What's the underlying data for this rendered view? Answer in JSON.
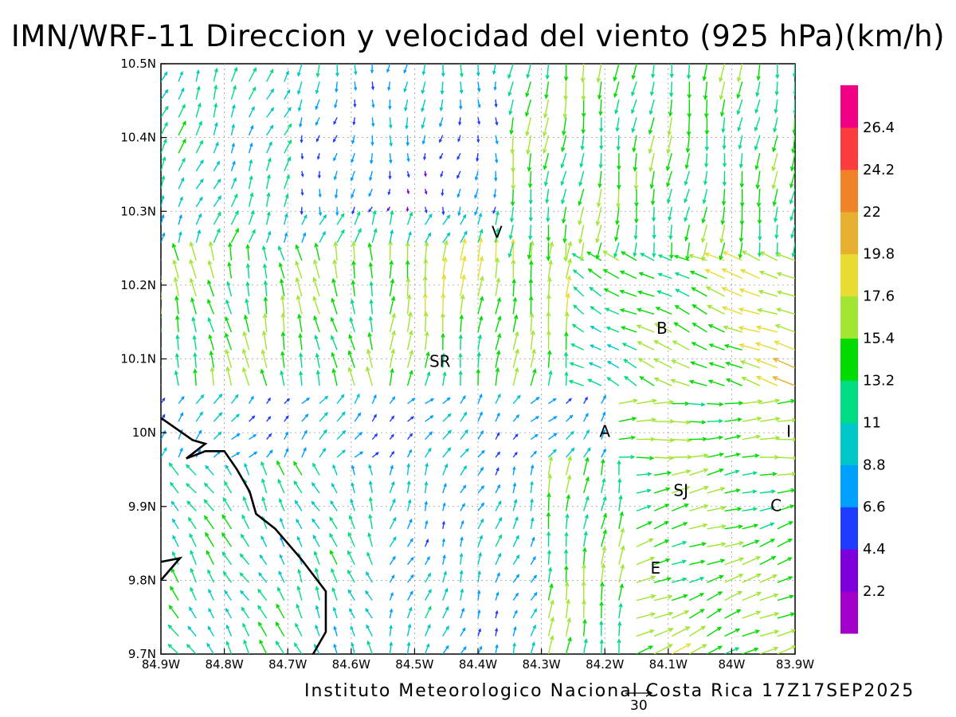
{
  "title": "IMN/WRF-11 Direccion y velocidad del viento (925 hPa)(km/h)",
  "credit": "Instituto Meteorologico Nacional Costa Rica 17Z17SEP2025",
  "reference_vector": {
    "value": "30"
  },
  "map": {
    "lon_range": [
      -84.9,
      -83.9
    ],
    "lat_range": [
      9.7,
      10.5
    ],
    "x_ticks": [
      "84.9W",
      "84.8W",
      "84.7W",
      "84.6W",
      "84.5W",
      "84.4W",
      "84.3W",
      "84.2W",
      "84.1W",
      "84W",
      "83.9W"
    ],
    "y_ticks": [
      "9.7N",
      "9.8N",
      "9.9N",
      "10N",
      "10.1N",
      "10.2N",
      "10.3N",
      "10.4N",
      "10.5N"
    ],
    "coastline": [
      {
        "name": "main-coast",
        "points": [
          [
            -84.9,
            10.02
          ],
          [
            -84.85,
            9.99
          ],
          [
            -84.83,
            9.985
          ],
          [
            -84.86,
            9.965
          ],
          [
            -84.83,
            9.975
          ],
          [
            -84.8,
            9.975
          ],
          [
            -84.78,
            9.95
          ],
          [
            -84.76,
            9.92
          ],
          [
            -84.75,
            9.89
          ],
          [
            -84.72,
            9.87
          ],
          [
            -84.68,
            9.83
          ],
          [
            -84.64,
            9.785
          ],
          [
            -84.64,
            9.73
          ],
          [
            -84.66,
            9.7
          ]
        ]
      },
      {
        "name": "peninsula-tip",
        "points": [
          [
            -84.9,
            9.825
          ],
          [
            -84.87,
            9.83
          ],
          [
            -84.9,
            9.8
          ]
        ]
      }
    ],
    "towns": [
      {
        "code": "V",
        "lon": -84.37,
        "lat": 10.27
      },
      {
        "code": "SR",
        "lon": -84.46,
        "lat": 10.095
      },
      {
        "code": "B",
        "lon": -84.11,
        "lat": 10.14
      },
      {
        "code": "A",
        "lon": -84.2,
        "lat": 10.0
      },
      {
        "code": "I",
        "lon": -83.91,
        "lat": 10.0
      },
      {
        "code": "SJ",
        "lon": -84.08,
        "lat": 9.92
      },
      {
        "code": "C",
        "lon": -83.93,
        "lat": 9.9
      },
      {
        "code": "E",
        "lon": -84.12,
        "lat": 9.815
      }
    ]
  },
  "colorbar": {
    "colors": [
      "#a000c8",
      "#7d00dc",
      "#1e3cff",
      "#00a0ff",
      "#00c8c8",
      "#00dc82",
      "#00dc00",
      "#a0e632",
      "#e6dc32",
      "#e6af2d",
      "#f08228",
      "#fa3c3c",
      "#f00082"
    ],
    "labels": [
      "2.2",
      "4.4",
      "6.6",
      "8.8",
      "11",
      "13.2",
      "15.4",
      "17.6",
      "19.8",
      "22",
      "24.2",
      "26.4"
    ]
  },
  "chart_data": {
    "type": "wind-vector-map",
    "title": "IMN/WRF-11 Direccion y velocidad del viento (925 hPa)(km/h)",
    "units": "km/h",
    "level": "925 hPa",
    "valid_time": "17Z17SEP2025",
    "ylim": [
      9.7,
      10.5
    ],
    "xlim": [
      -84.9,
      -83.9
    ],
    "speed_levels": [
      2.2,
      4.4,
      6.6,
      8.8,
      11,
      13.2,
      15.4,
      17.6,
      19.8,
      22,
      24.2,
      26.4
    ],
    "reference_vector_kmh": 30
  }
}
